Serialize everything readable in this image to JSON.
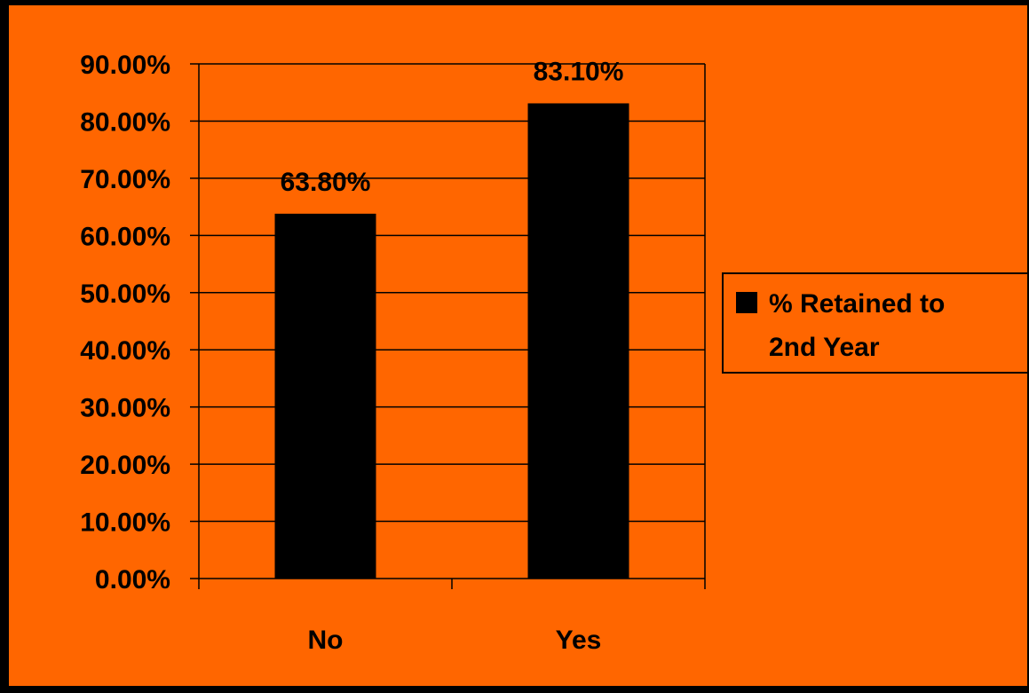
{
  "colors": {
    "background": "#ff6600",
    "bars": "#000000",
    "frame": "#000000"
  },
  "chart_data": {
    "type": "bar",
    "categories": [
      "No",
      "Yes"
    ],
    "series": [
      {
        "name": "% Retained to 2nd Year",
        "values": [
          63.8,
          83.1
        ]
      }
    ],
    "value_format": "percent_2dp",
    "data_labels": [
      "63.80%",
      "83.10%"
    ],
    "y_ticks": [
      "0.00%",
      "10.00%",
      "20.00%",
      "30.00%",
      "40.00%",
      "50.00%",
      "60.00%",
      "70.00%",
      "80.00%",
      "90.00%"
    ],
    "ylim": [
      0,
      90
    ],
    "grid": true,
    "legend": {
      "placement": "right",
      "lines": [
        "% Retained to",
        "2nd Year"
      ]
    },
    "title": "",
    "xlabel": "",
    "ylabel": ""
  }
}
